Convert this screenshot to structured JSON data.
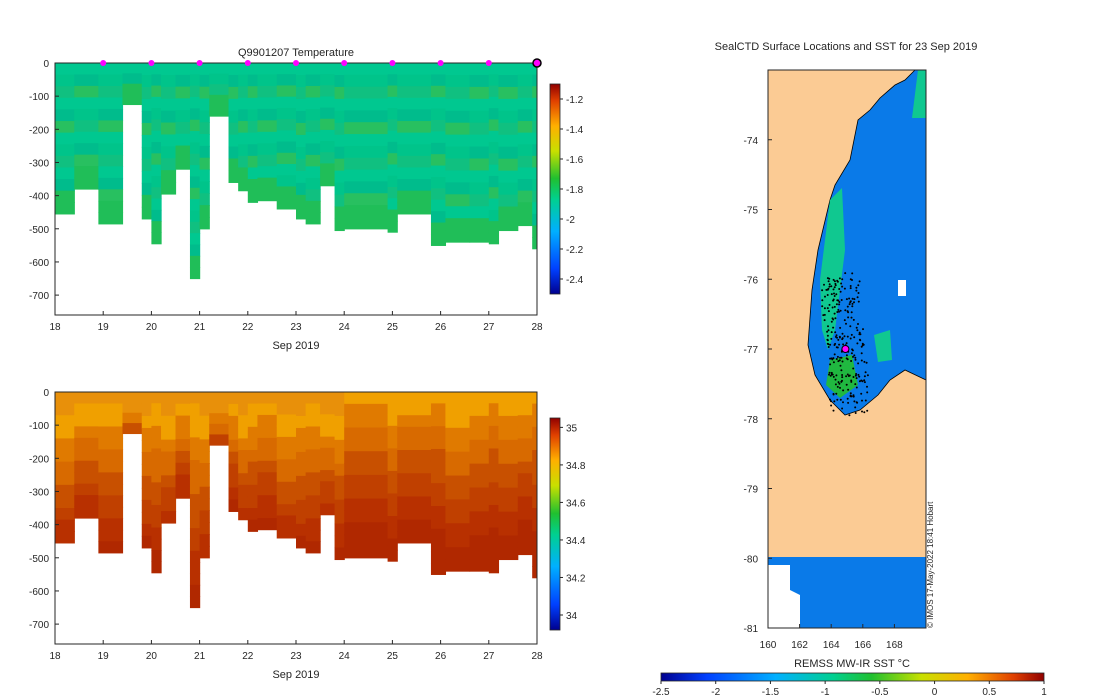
{
  "chart_data": [
    {
      "type": "heatmap",
      "panel": "temperature-section",
      "title": "Q9901207  Temperature",
      "xlabel": "Sep 2019",
      "x_ticks": [
        "18",
        "19",
        "20",
        "21",
        "22",
        "23",
        "24",
        "25",
        "26",
        "27",
        "28"
      ],
      "xlim": [
        18,
        28
      ],
      "y_ticks": [
        "0",
        "-100",
        "-200",
        "-300",
        "-400",
        "-500",
        "-600",
        "-700"
      ],
      "ylim": [
        -760,
        0
      ],
      "colorbar_ticks": [
        "-1.2",
        "-1.4",
        "-1.6",
        "-1.8",
        "-2",
        "-2.2",
        "-2.4"
      ],
      "clim": [
        -2.5,
        -1.1
      ],
      "surface_marker_days": [
        19,
        20,
        21,
        22,
        23,
        24,
        25,
        26,
        27
      ],
      "last_profile_day": 28,
      "profiles": [
        {
          "day": 18.0,
          "max_depth": 455
        },
        {
          "day": 18.4,
          "max_depth": 380
        },
        {
          "day": 18.9,
          "max_depth": 485
        },
        {
          "day": 19.4,
          "max_depth": 125
        },
        {
          "day": 19.8,
          "max_depth": 470
        },
        {
          "day": 20.0,
          "max_depth": 545
        },
        {
          "day": 20.2,
          "max_depth": 395
        },
        {
          "day": 20.5,
          "max_depth": 320
        },
        {
          "day": 20.8,
          "max_depth": 650
        },
        {
          "day": 21.0,
          "max_depth": 500
        },
        {
          "day": 21.2,
          "max_depth": 160
        },
        {
          "day": 21.6,
          "max_depth": 360
        },
        {
          "day": 21.8,
          "max_depth": 385
        },
        {
          "day": 22.0,
          "max_depth": 420
        },
        {
          "day": 22.2,
          "max_depth": 415
        },
        {
          "day": 22.6,
          "max_depth": 440
        },
        {
          "day": 23.0,
          "max_depth": 470
        },
        {
          "day": 23.2,
          "max_depth": 485
        },
        {
          "day": 23.5,
          "max_depth": 370
        },
        {
          "day": 23.8,
          "max_depth": 505
        },
        {
          "day": 24.0,
          "max_depth": 500
        },
        {
          "day": 24.9,
          "max_depth": 510
        },
        {
          "day": 25.1,
          "max_depth": 455
        },
        {
          "day": 25.8,
          "max_depth": 550
        },
        {
          "day": 26.1,
          "max_depth": 540
        },
        {
          "day": 26.6,
          "max_depth": 540
        },
        {
          "day": 27.0,
          "max_depth": 545
        },
        {
          "day": 27.2,
          "max_depth": 505
        },
        {
          "day": 27.6,
          "max_depth": 490
        },
        {
          "day": 27.9,
          "max_depth": 560
        }
      ]
    },
    {
      "type": "heatmap",
      "panel": "salinity-section",
      "xlabel": "Sep 2019",
      "x_ticks": [
        "18",
        "19",
        "20",
        "21",
        "22",
        "23",
        "24",
        "25",
        "26",
        "27",
        "28"
      ],
      "xlim": [
        18,
        28
      ],
      "y_ticks": [
        "0",
        "-100",
        "-200",
        "-300",
        "-400",
        "-500",
        "-600",
        "-700"
      ],
      "ylim": [
        -760,
        0
      ],
      "colorbar_ticks": [
        "35",
        "34.8",
        "34.6",
        "34.4",
        "34.2",
        "34"
      ],
      "clim": [
        33.92,
        35.05
      ]
    },
    {
      "type": "heatmap",
      "panel": "sst-map",
      "title": "SealCTD Surface Locations and SST for 23 Sep 2019",
      "x_ticks": [
        "160",
        "162",
        "164",
        "166",
        "168"
      ],
      "xlim": [
        160,
        170
      ],
      "y_ticks": [
        "-74",
        "-75",
        "-76",
        "-77",
        "-78",
        "-79",
        "-80",
        "-81"
      ],
      "ylim": [
        -81,
        -73
      ],
      "colorbar_label": "REMSS MW-IR SST °C",
      "colorbar_ticks": [
        "-2.5",
        "-2",
        "-1.5",
        "-1",
        "-0.5",
        "0",
        "0.5",
        "1"
      ],
      "clim": [
        -2.5,
        1
      ],
      "latest_position": {
        "lon": 164.9,
        "lat": -77.0
      },
      "credit": "© IMOS 17-May-2022 18:41 Hobart"
    }
  ]
}
